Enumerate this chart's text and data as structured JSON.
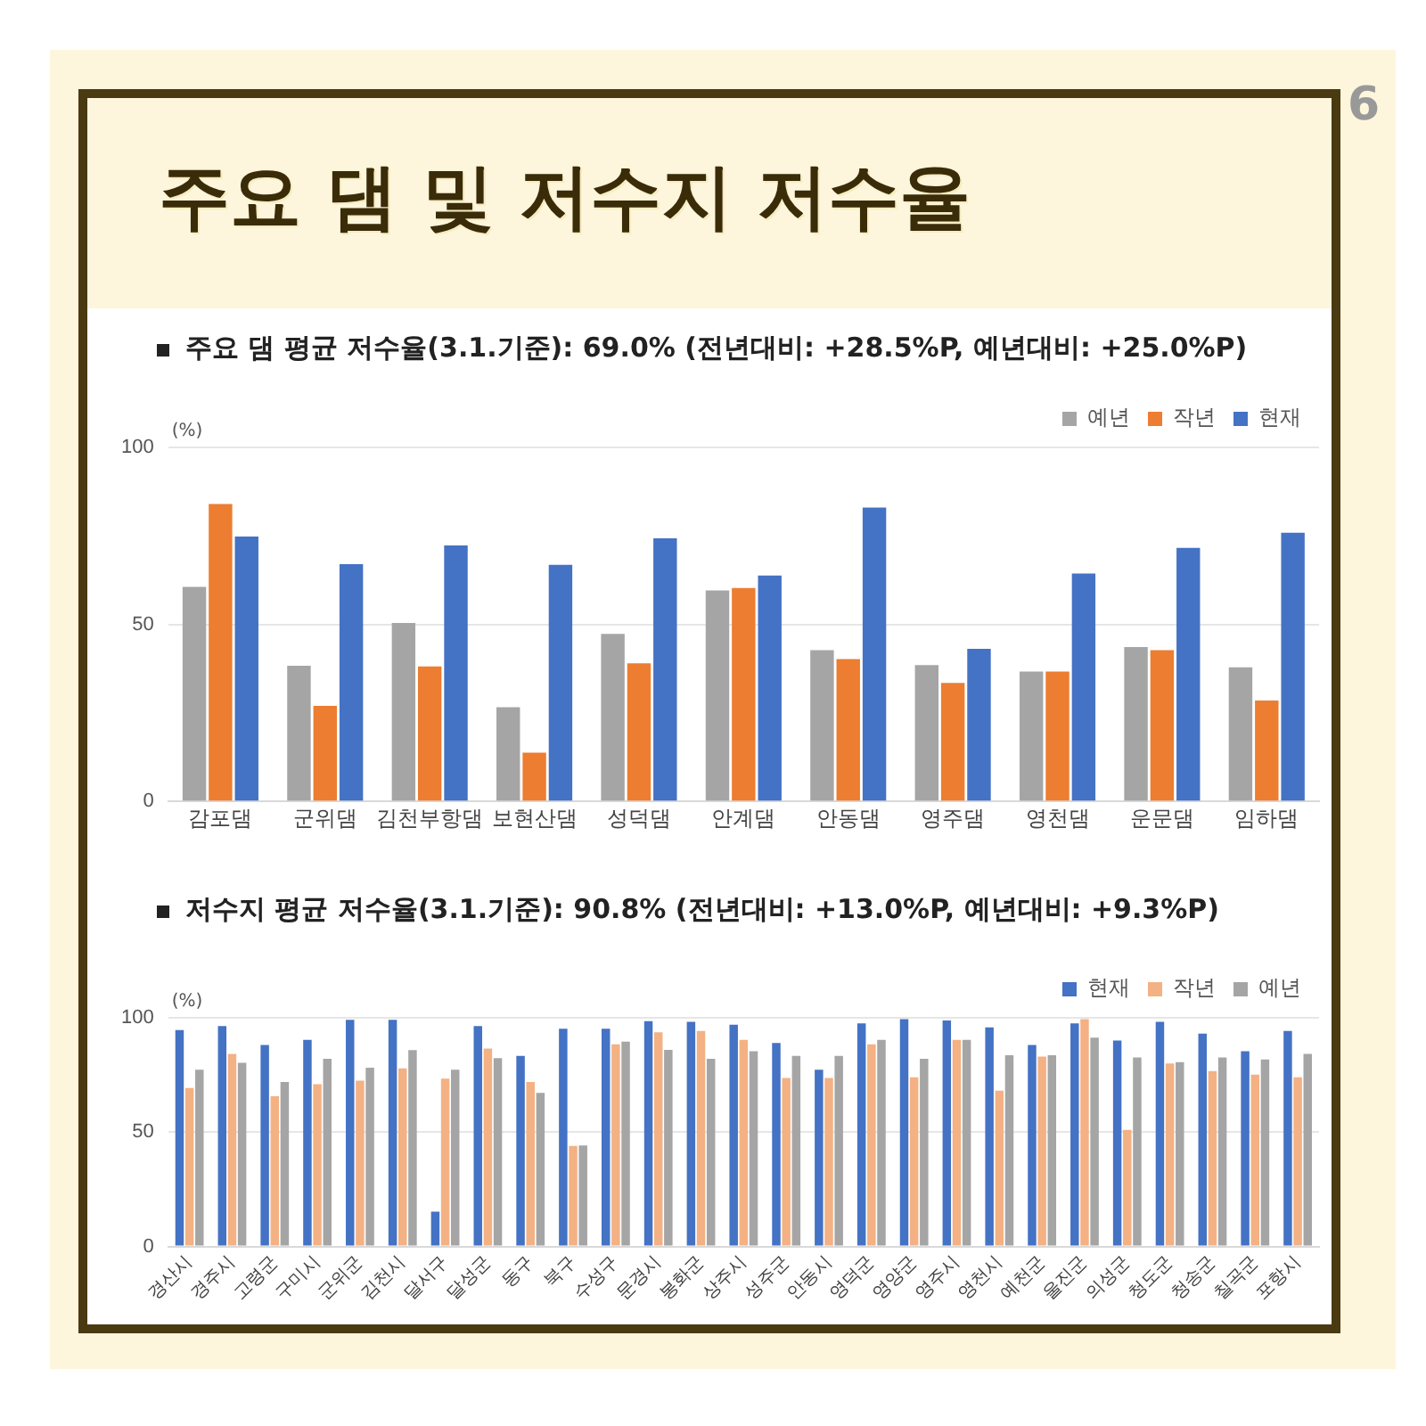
{
  "chart_data": [
    {
      "type": "bar",
      "title": "주요 댐 평균 저수율(3.1.기준): 69.0% (전년대비: +28.5%P, 예년대비: +25.0%P)",
      "ylabel": "(%)",
      "annotations": [
        "주요 댐 및 저수지 저수율",
        "6"
      ],
      "categories": [
        "감포댐",
        "군위댐",
        "김천부항댐",
        "보현산댐",
        "성덕댐",
        "안계댐",
        "안동댐",
        "영주댐",
        "영천댐",
        "운문댐",
        "임하댐"
      ],
      "series": [
        {
          "name": "예년",
          "color": "#a5a5a5",
          "values": [
            60.6,
            38.3,
            50.4,
            26.6,
            47.3,
            59.6,
            42.7,
            38.5,
            36.7,
            43.6,
            37.9
          ]
        },
        {
          "name": "작년",
          "color": "#ed7d31",
          "values": [
            84,
            27,
            38.1,
            13.8,
            39,
            60.3,
            40.2,
            33.5,
            36.7,
            42.7,
            28.5
          ]
        },
        {
          "name": "현재",
          "color": "#4472c4",
          "values": [
            74.8,
            67,
            72.3,
            66.8,
            74.3,
            63.8,
            83,
            43.1,
            64.4,
            71.6,
            75.9
          ]
        }
      ],
      "ylim": [
        0,
        100
      ],
      "yticks": [
        0,
        50,
        100
      ],
      "grid": "y",
      "legend": "top right"
    },
    {
      "type": "bar",
      "title": "저수지 평균 저수율(3.1.기준): 90.8% (전년대비: +13.0%P, 예년대비: +9.3%P)",
      "ylabel": "(%)",
      "categories": [
        "경산시",
        "경주시",
        "고령군",
        "구미시",
        "군위군",
        "김천시",
        "달서구",
        "달성군",
        "동구",
        "북구",
        "수성구",
        "문경시",
        "봉화군",
        "상주시",
        "성주군",
        "안동시",
        "영덕군",
        "영양군",
        "영주시",
        "영천시",
        "예천군",
        "울진군",
        "의성군",
        "청도군",
        "청송군",
        "칠곡군",
        "포항시"
      ],
      "series": [
        {
          "name": "현재",
          "color": "#4472c4",
          "values": [
            94.6,
            96.4,
            88.1,
            90.4,
            99.1,
            99.1,
            15.2,
            96.4,
            83.3,
            95.2,
            95.2,
            98.5,
            98.2,
            97,
            89,
            77.3,
            97.6,
            99.4,
            98.8,
            95.8,
            88.1,
            97.6,
            90.1,
            98.2,
            93.1,
            85.4,
            94.3
          ]
        },
        {
          "name": "작년",
          "color": "#f4b183",
          "values": [
            69.3,
            84.2,
            65.7,
            71,
            72.5,
            77.9,
            73.4,
            86.6,
            71.9,
            44,
            88.4,
            93.7,
            94.3,
            90.4,
            73.7,
            73.7,
            88.4,
            74,
            90.4,
            68.1,
            83,
            99.4,
            51,
            80,
            76.7,
            75.2,
            74
          ]
        },
        {
          "name": "예년",
          "color": "#a5a5a5",
          "values": [
            77.3,
            80.3,
            71.9,
            82.1,
            78.2,
            85.9,
            77.3,
            82.4,
            67.2,
            44.2,
            89.6,
            86,
            82.1,
            85.4,
            83.3,
            83.3,
            90.4,
            82.1,
            90.4,
            83.6,
            83.6,
            91.3,
            82.7,
            80.6,
            82.7,
            81.8,
            84.2
          ]
        }
      ],
      "ylim": [
        0,
        100
      ],
      "yticks": [
        0,
        50,
        100
      ],
      "grid": "y",
      "legend": "top right"
    }
  ]
}
